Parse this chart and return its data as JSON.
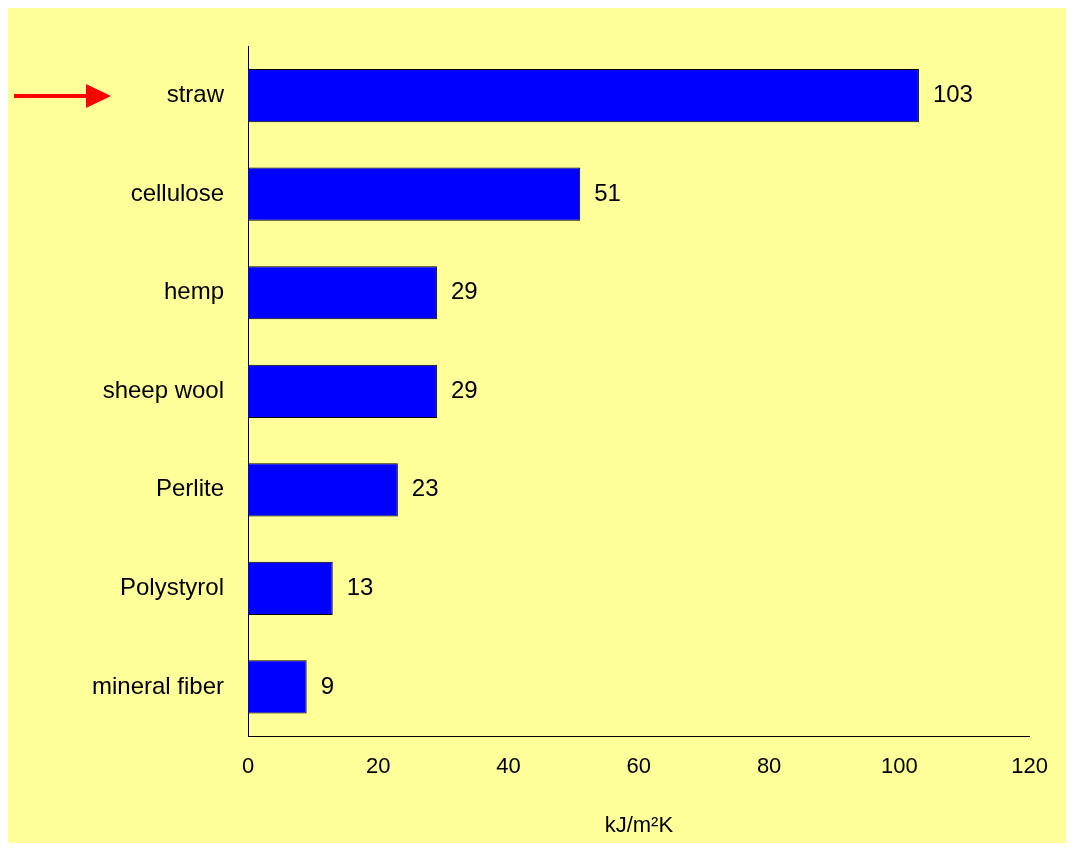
{
  "chart_data": {
    "type": "bar",
    "orientation": "horizontal",
    "xlabel": "kJ/m²K",
    "categories": [
      "straw",
      "cellulose",
      "hemp",
      "sheep wool",
      "Perlite",
      "Polystyrol",
      "mineral fiber"
    ],
    "values": [
      103,
      51,
      29,
      29,
      23,
      13,
      9
    ],
    "color": "#0000ff",
    "xlim": [
      0,
      120
    ],
    "xticks": [
      0,
      20,
      40,
      60,
      80,
      100,
      120
    ],
    "data_labels": true
  }
}
